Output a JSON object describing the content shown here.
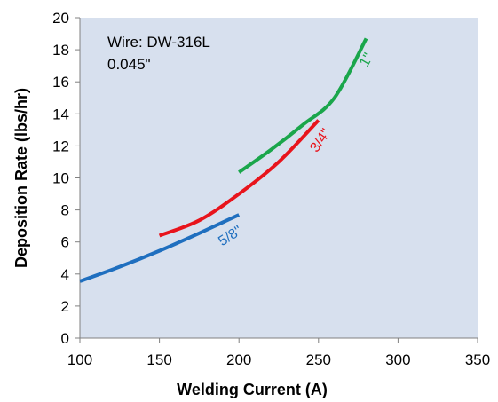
{
  "chart_data": {
    "type": "line",
    "title": "",
    "xlabel": "Welding Current (A)",
    "ylabel": "Deposition Rate (lbs/hr)",
    "xlim": [
      100,
      350
    ],
    "ylim": [
      0,
      20
    ],
    "xticks": [
      100,
      150,
      200,
      250,
      300,
      350
    ],
    "yticks": [
      0,
      2,
      4,
      6,
      8,
      10,
      12,
      14,
      16,
      18,
      20
    ],
    "grid": false,
    "annotation_lines": [
      "Wire: DW-316L",
      "0.045\""
    ],
    "series": [
      {
        "name": "5/8\"",
        "color": "#1f6fbf",
        "x": [
          100,
          125,
          150,
          175,
          200
        ],
        "y": [
          3.55,
          4.45,
          5.45,
          6.55,
          7.7
        ]
      },
      {
        "name": "3/4\"",
        "color": "#e8141c",
        "x": [
          150,
          175,
          200,
          225,
          250
        ],
        "y": [
          6.4,
          7.35,
          9.0,
          11.0,
          13.6
        ]
      },
      {
        "name": "1\"",
        "color": "#1aa64b",
        "x": [
          200,
          220,
          240,
          260,
          280
        ],
        "y": [
          10.35,
          11.75,
          13.3,
          15.0,
          18.7
        ]
      }
    ]
  }
}
